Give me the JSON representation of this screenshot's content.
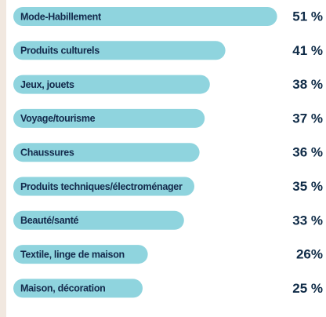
{
  "chart_data": {
    "type": "bar",
    "orientation": "horizontal",
    "categories": [
      "Mode-Habillement",
      "Produits culturels",
      "Jeux, jouets",
      "Voyage/tourisme",
      "Chaussures",
      "Produits techniques/électroménager",
      "Beauté/santé",
      "Textile, linge de maison",
      "Maison, décoration"
    ],
    "values": [
      51,
      41,
      38,
      37,
      36,
      35,
      33,
      26,
      25
    ],
    "value_labels": [
      "51 %",
      "41 %",
      "38 %",
      "37 %",
      "36 %",
      "35 %",
      "33 %",
      "26%",
      "25 %"
    ],
    "color": "#8fd4de"
  }
}
